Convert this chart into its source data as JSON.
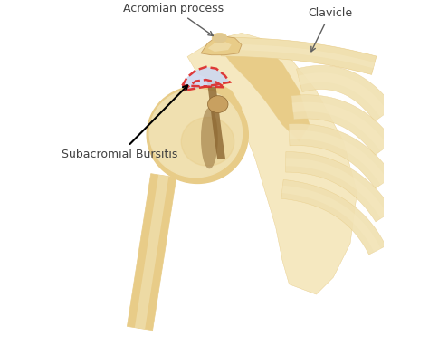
{
  "background_color": "#ffffff",
  "bone_light": "#f0e0b0",
  "bone_mid": "#e8cc88",
  "bone_dark": "#c8a060",
  "bone_shadow": "#8b6530",
  "bone_deep": "#a07840",
  "scapula_light": "#f5e8c0",
  "bursa_fill": "#cdd8f0",
  "bursa_edge": "#dd2222",
  "text_color": "#404040",
  "arrow_color": "#606060",
  "label_acromian": "Acromian process",
  "label_clavicle": "Clavicle",
  "label_bursitis": "Subacromial Bursitis",
  "figsize": [
    4.74,
    3.82
  ],
  "dpi": 100
}
